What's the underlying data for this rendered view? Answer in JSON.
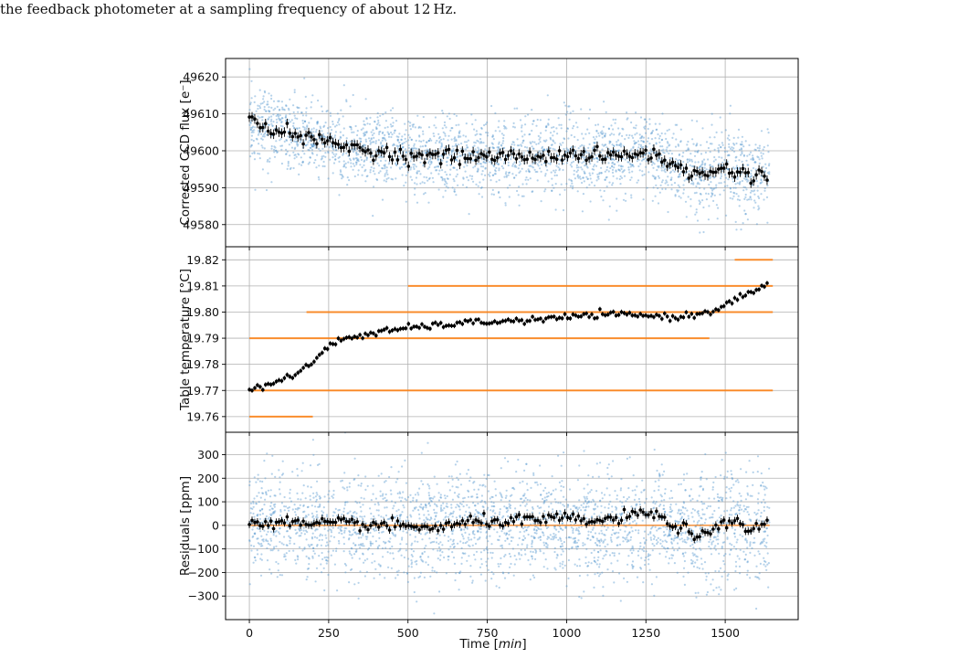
{
  "caption": "the feedback photometer at a sampling frequency of about 12 Hz.",
  "colors": {
    "scatter": "#5b9bd0",
    "orange": "#ff7f0e",
    "binned": "#000000",
    "grid": "#b0b0b0"
  },
  "x_axis": {
    "label": "Time [min]",
    "label_plain": "Time [",
    "label_italic": "min",
    "label_close": "]",
    "lim": [
      -75,
      1730
    ],
    "ticks": [
      0,
      250,
      500,
      750,
      1000,
      1250,
      1500
    ]
  },
  "chart_data": [
    {
      "id": "flux",
      "type": "scatter",
      "ylabel": "Corrected CCD flux [e⁻]",
      "ylim": [
        49574,
        49625
      ],
      "yticks": [
        49580,
        49590,
        49600,
        49610,
        49620
      ],
      "grid": true,
      "raw_scatter": {
        "noise_sd": 5.2
      },
      "binned": {
        "x": [
          0,
          200,
          350,
          500,
          700,
          900,
          1000,
          1150,
          1250,
          1300,
          1380,
          1420,
          1480,
          1520,
          1580,
          1610,
          1630
        ],
        "y": [
          49608,
          49603,
          49600.5,
          49598.5,
          49598.5,
          49598.5,
          49599,
          49598.5,
          49599.5,
          49598,
          49594,
          49593.5,
          49595,
          49595,
          49593,
          49594,
          49593
        ]
      }
    },
    {
      "id": "temperature",
      "type": "scatter",
      "ylabel": "Table temperature [°C]",
      "ylim": [
        19.754,
        19.825
      ],
      "yticks": [
        19.76,
        19.77,
        19.78,
        19.79,
        19.8,
        19.81,
        19.82
      ],
      "yticklabels": [
        "19.76",
        "19.77",
        "19.78",
        "19.79",
        "19.80",
        "19.81",
        "19.82"
      ],
      "grid": true,
      "raw_levels": [
        {
          "y": 19.76,
          "x": [
            0,
            200
          ]
        },
        {
          "y": 19.77,
          "x": [
            0,
            1650
          ]
        },
        {
          "y": 19.79,
          "x": [
            0,
            1450
          ]
        },
        {
          "y": 19.8,
          "x": [
            180,
            1650
          ]
        },
        {
          "y": 19.81,
          "x": [
            500,
            1650
          ]
        },
        {
          "y": 19.82,
          "x": [
            1530,
            1650
          ]
        }
      ],
      "binned": {
        "x": [
          0,
          50,
          150,
          200,
          250,
          300,
          400,
          500,
          700,
          900,
          1000,
          1100,
          1200,
          1350,
          1400,
          1450,
          1500,
          1550,
          1600,
          1640
        ],
        "y": [
          19.77,
          19.772,
          19.776,
          19.781,
          19.787,
          19.79,
          19.792,
          19.794,
          19.796,
          19.797,
          19.798,
          19.799,
          19.799,
          19.798,
          19.799,
          19.8,
          19.803,
          19.806,
          19.808,
          19.811
        ]
      }
    },
    {
      "id": "residuals",
      "type": "scatter",
      "ylabel": "Residuals [ppm]",
      "ylim": [
        -400,
        395
      ],
      "yticks": [
        -300,
        -200,
        -100,
        0,
        100,
        200,
        300
      ],
      "yticklabels": [
        "−300",
        "−200",
        "−100",
        "0",
        "100",
        "200",
        "300"
      ],
      "grid": true,
      "raw_scatter": {
        "noise_sd": 110
      },
      "model_line": {
        "y": 0
      },
      "binned": {
        "x": [
          0,
          100,
          200,
          300,
          400,
          500,
          600,
          700,
          800,
          900,
          1000,
          1100,
          1200,
          1260,
          1300,
          1380,
          1420,
          1450,
          1500,
          1540,
          1580,
          1610,
          1635
        ],
        "y": [
          10,
          15,
          0,
          10,
          0,
          -5,
          -10,
          15,
          20,
          20,
          30,
          15,
          40,
          55,
          25,
          -20,
          -50,
          -40,
          10,
          20,
          -30,
          0,
          20
        ]
      }
    }
  ]
}
